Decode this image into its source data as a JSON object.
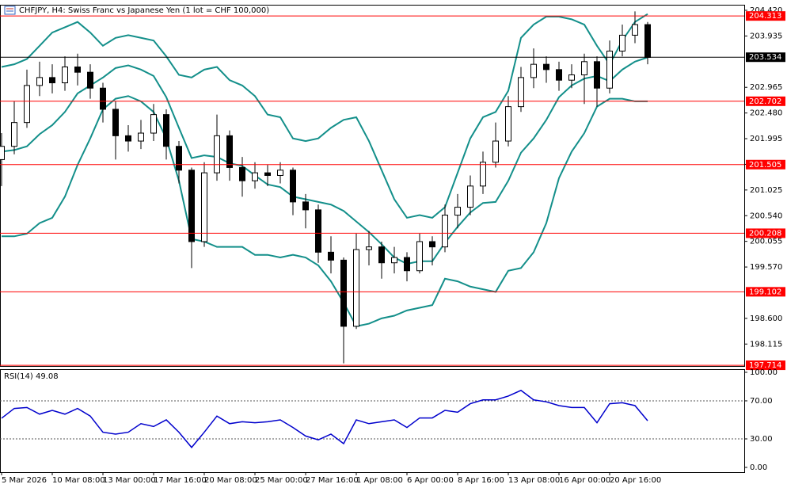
{
  "chart_data": [
    {
      "type": "candlestick",
      "title": "CHFJPY, H4:  Swiss Franc vs Japanese Yen (1 lot = CHF 100,000)",
      "categories": [
        "5 Mar 2026",
        null,
        null,
        null,
        "10 Mar 08:00",
        null,
        null,
        null,
        "13 Mar 00:00",
        null,
        null,
        null,
        "17 Mar 16:00",
        null,
        null,
        null,
        "20 Mar 08:00",
        null,
        null,
        null,
        "25 Mar 00:00",
        null,
        null,
        null,
        "27 Mar 16:00",
        null,
        null,
        null,
        "1 Apr 08:00",
        null,
        null,
        null,
        "6 Apr 00:00",
        null,
        null,
        null,
        "8 Apr 16:00",
        null,
        null,
        null,
        "13 Apr 08:00",
        null,
        null,
        null,
        "16 Apr 00:00",
        null,
        null,
        null,
        "20 Apr 16:00",
        null,
        null,
        null
      ],
      "open": [
        201.6,
        201.85,
        202.3,
        203.0,
        203.15,
        203.05,
        203.35,
        203.25,
        202.95,
        202.55,
        202.05,
        201.95,
        202.1,
        202.45,
        201.85,
        201.4,
        200.05,
        201.35,
        202.05,
        201.45,
        201.2,
        201.35,
        201.3,
        201.4,
        200.8,
        200.65,
        199.85,
        199.7,
        198.45,
        199.9,
        199.95,
        199.65,
        199.75,
        199.5,
        200.05,
        199.95,
        200.55,
        200.7,
        201.1,
        201.55,
        201.95,
        202.6,
        203.15,
        203.4,
        203.3,
        203.1,
        203.2,
        203.45,
        202.95,
        203.65,
        203.95,
        204.15
      ],
      "high": [
        202.1,
        202.7,
        203.3,
        203.45,
        203.4,
        203.55,
        203.6,
        203.4,
        203.05,
        202.7,
        202.25,
        202.35,
        202.65,
        202.55,
        201.95,
        201.45,
        201.55,
        202.45,
        202.15,
        201.65,
        201.55,
        201.5,
        201.55,
        201.45,
        200.95,
        200.75,
        200.15,
        199.75,
        200.2,
        200.25,
        200.05,
        199.95,
        199.85,
        200.2,
        200.15,
        200.75,
        200.95,
        201.3,
        201.75,
        202.3,
        202.8,
        203.35,
        203.7,
        203.55,
        203.45,
        203.4,
        203.6,
        203.55,
        203.85,
        204.15,
        204.4,
        204.2
      ],
      "low": [
        201.1,
        201.7,
        202.2,
        202.8,
        202.85,
        202.9,
        203.0,
        202.75,
        202.3,
        201.6,
        201.75,
        201.8,
        201.95,
        201.6,
        201.15,
        199.55,
        199.95,
        201.2,
        201.2,
        200.9,
        201.05,
        201.1,
        201.15,
        200.55,
        200.3,
        199.65,
        199.45,
        197.75,
        198.4,
        199.6,
        199.35,
        199.45,
        199.3,
        199.45,
        199.6,
        199.85,
        200.3,
        200.55,
        200.95,
        201.45,
        201.85,
        202.5,
        202.95,
        203.05,
        202.9,
        202.95,
        202.65,
        202.6,
        202.85,
        203.55,
        203.8,
        203.4
      ],
      "close": [
        201.85,
        202.3,
        203.0,
        203.15,
        203.05,
        203.35,
        203.25,
        202.95,
        202.55,
        202.05,
        201.95,
        202.1,
        202.45,
        201.85,
        201.4,
        200.05,
        201.35,
        202.05,
        201.45,
        201.2,
        201.35,
        201.3,
        201.4,
        200.8,
        200.65,
        199.85,
        199.7,
        198.45,
        199.9,
        199.95,
        199.65,
        199.75,
        199.5,
        200.05,
        199.95,
        200.55,
        200.7,
        201.1,
        201.55,
        201.95,
        202.6,
        203.15,
        203.4,
        203.3,
        203.1,
        203.2,
        203.45,
        202.95,
        203.65,
        203.95,
        204.15,
        203.53
      ],
      "candle_color": "#000000",
      "lines": [
        {
          "color": "#138f8a",
          "values": [
            203.35,
            203.4,
            203.5,
            203.75,
            204.0,
            204.1,
            204.2,
            204.0,
            203.75,
            203.9,
            203.95,
            203.9,
            203.85,
            203.55,
            203.2,
            203.15,
            203.3,
            203.35,
            203.1,
            203.0,
            202.8,
            202.45,
            202.4,
            202.0,
            201.95,
            202.0,
            202.2,
            202.35,
            202.4,
            201.95,
            201.4,
            200.85,
            200.5,
            200.55,
            200.5,
            200.7,
            201.35,
            202.0,
            202.4,
            202.5,
            202.9,
            203.9,
            204.15,
            204.3,
            204.3,
            204.25,
            204.15,
            203.75,
            203.4,
            203.85,
            204.2,
            204.35
          ]
        },
        {
          "color": "#138f8a",
          "values": [
            201.75,
            201.78,
            201.85,
            202.08,
            202.25,
            202.5,
            202.85,
            203.0,
            203.15,
            203.33,
            203.38,
            203.3,
            203.18,
            202.78,
            202.2,
            201.63,
            201.68,
            201.65,
            201.53,
            201.48,
            201.3,
            201.13,
            201.08,
            200.9,
            200.85,
            200.8,
            200.75,
            200.63,
            200.43,
            200.23,
            200.0,
            199.75,
            199.63,
            199.68,
            199.68,
            200.03,
            200.33,
            200.6,
            200.78,
            200.8,
            201.2,
            201.73,
            202.0,
            202.35,
            202.78,
            203.0,
            203.13,
            203.18,
            203.08,
            203.3,
            203.45,
            203.53
          ]
        },
        {
          "color": "#138f8a",
          "values": [
            200.15,
            200.15,
            200.2,
            200.4,
            200.5,
            200.9,
            201.5,
            202.0,
            202.55,
            202.75,
            202.8,
            202.7,
            202.5,
            202.0,
            201.2,
            200.1,
            200.05,
            199.95,
            199.95,
            199.95,
            199.8,
            199.8,
            199.75,
            199.8,
            199.75,
            199.6,
            199.3,
            198.9,
            198.45,
            198.5,
            198.6,
            198.65,
            198.75,
            198.8,
            198.85,
            199.35,
            199.3,
            199.2,
            199.15,
            199.1,
            199.5,
            199.55,
            199.85,
            200.4,
            201.25,
            201.75,
            202.1,
            202.6,
            202.75,
            202.75,
            202.7,
            202.7
          ]
        }
      ],
      "levels": [
        204.313,
        202.702,
        201.505,
        200.208,
        199.102,
        197.714
      ],
      "level_color": "#ff0000",
      "current_price": 203.534,
      "current_color": "#000000",
      "ylim": [
        197.7,
        204.525
      ],
      "yticks": [
        {
          "value": 204.42,
          "label": "204.420"
        },
        203.935,
        202.965,
        {
          "value": 202.48,
          "label": "202.480"
        },
        201.995,
        {
          "value": 201.51,
          "label": "201.510"
        },
        201.025,
        {
          "value": 200.54,
          "label": "200.540"
        },
        200.055,
        {
          "value": 199.57,
          "label": "199.570"
        },
        {
          "value": 198.6,
          "label": "198.600"
        },
        198.115
      ]
    },
    {
      "type": "line",
      "title": "RSI(14) 49.08",
      "color": "#0000cc",
      "values": [
        51.7,
        62,
        63,
        56,
        60,
        56,
        62,
        54,
        37,
        35,
        37,
        46,
        43,
        50,
        37,
        21,
        37,
        54,
        46,
        48,
        47,
        48,
        50,
        42,
        33,
        29,
        35,
        25,
        50,
        46,
        48,
        50,
        42,
        52,
        52,
        60,
        58,
        67,
        71,
        71,
        75,
        81,
        71,
        69,
        65,
        63,
        63,
        47,
        67,
        68,
        65,
        49.08
      ],
      "levels": [
        70,
        30
      ],
      "ylim": [
        -5,
        103.3
      ],
      "yticks": [
        {
          "value": 100,
          "label": "100.00"
        },
        {
          "value": 70,
          "label": "70.00"
        },
        {
          "value": 30,
          "label": "30.00"
        },
        {
          "value": 0,
          "label": "0.00"
        }
      ]
    }
  ]
}
